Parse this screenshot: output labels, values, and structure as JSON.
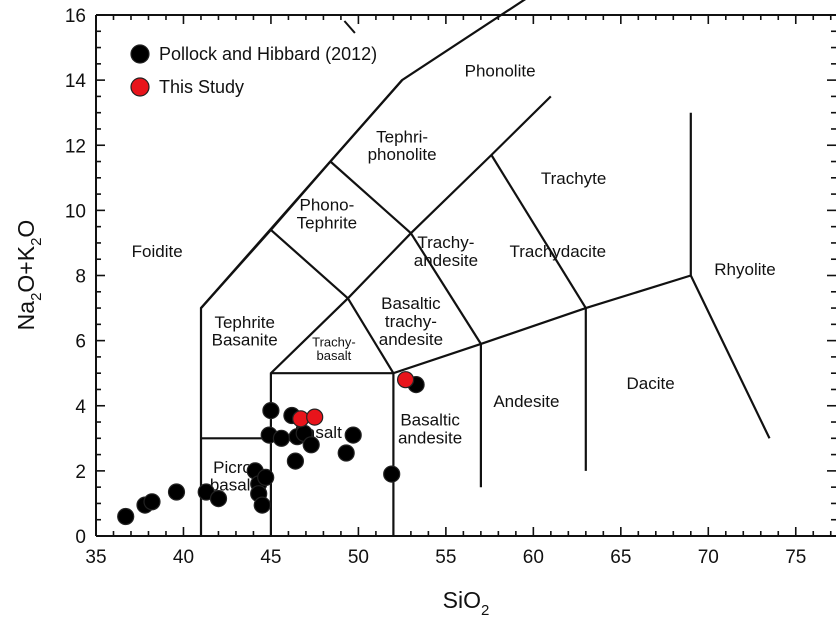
{
  "chart_data": {
    "type": "scatter",
    "xlabel": {
      "main": "SiO",
      "sub": "2"
    },
    "ylabel": {
      "p1": "Na",
      "s1": "2",
      "p2": "O+K",
      "s2": "2",
      "p3": "O"
    },
    "xlim": [
      35,
      77.3
    ],
    "ylim": [
      0,
      16
    ],
    "x_ticks": [
      "35",
      "40",
      "45",
      "50",
      "55",
      "60",
      "65",
      "70",
      "75"
    ],
    "y_ticks": [
      "0",
      "2",
      "4",
      "6",
      "8",
      "10",
      "12",
      "14",
      "16"
    ],
    "grid": false,
    "legend_position": "top-left",
    "series": [
      {
        "name": "Pollock and Hibbard (2012)",
        "color": "#000000",
        "points": [
          [
            36.7,
            0.6
          ],
          [
            37.8,
            0.95
          ],
          [
            38.2,
            1.05
          ],
          [
            39.6,
            1.35
          ],
          [
            41.3,
            1.35
          ],
          [
            42.0,
            1.15
          ],
          [
            44.1,
            2.0
          ],
          [
            44.3,
            1.6
          ],
          [
            44.3,
            1.3
          ],
          [
            44.5,
            0.95
          ],
          [
            44.7,
            1.8
          ],
          [
            45.0,
            3.85
          ],
          [
            44.9,
            3.1
          ],
          [
            45.6,
            3.0
          ],
          [
            46.2,
            3.7
          ],
          [
            46.4,
            2.3
          ],
          [
            46.5,
            3.05
          ],
          [
            46.9,
            3.15
          ],
          [
            47.3,
            2.8
          ],
          [
            49.3,
            2.55
          ],
          [
            49.7,
            3.1
          ],
          [
            51.9,
            1.9
          ],
          [
            53.3,
            4.65
          ]
        ]
      },
      {
        "name": "This Study",
        "color": "#e8141b",
        "points": [
          [
            46.7,
            3.6
          ],
          [
            47.5,
            3.65
          ],
          [
            52.7,
            4.8
          ]
        ]
      }
    ],
    "tas_field_labels": [
      {
        "lines": [
          "Foidite"
        ],
        "x": 38.5,
        "y": 8.75,
        "size": "normal"
      },
      {
        "lines": [
          "Phonolite"
        ],
        "x": 58.1,
        "y": 14.3,
        "size": "normal"
      },
      {
        "lines": [
          "Tephri-",
          "phonolite"
        ],
        "x": 52.5,
        "y": 12.0,
        "size": "normal"
      },
      {
        "lines": [
          "Phono-",
          "Tephrite"
        ],
        "x": 48.2,
        "y": 9.9,
        "size": "normal"
      },
      {
        "lines": [
          "Trachyte"
        ],
        "x": 62.3,
        "y": 11.0,
        "size": "normal"
      },
      {
        "lines": [
          "Trachy-",
          "andesite"
        ],
        "x": 55.0,
        "y": 8.75,
        "size": "normal"
      },
      {
        "lines": [
          "Trachydacite"
        ],
        "x": 61.4,
        "y": 8.75,
        "size": "normal"
      },
      {
        "lines": [
          "Rhyolite"
        ],
        "x": 72.1,
        "y": 8.2,
        "size": "normal"
      },
      {
        "lines": [
          "Basaltic",
          "trachy-",
          "andesite"
        ],
        "x": 53.0,
        "y": 6.6,
        "size": "normal"
      },
      {
        "lines": [
          "Tephrite",
          "Basanite"
        ],
        "x": 43.5,
        "y": 6.3,
        "size": "normal"
      },
      {
        "lines": [
          "Trachy-",
          "basalt"
        ],
        "x": 48.6,
        "y": 5.75,
        "size": "small"
      },
      {
        "lines": [
          "Basalt"
        ],
        "x": 47.7,
        "y": 3.2,
        "size": "normal"
      },
      {
        "lines": [
          "Basaltic",
          "andesite"
        ],
        "x": 54.1,
        "y": 3.3,
        "size": "normal"
      },
      {
        "lines": [
          "Andesite"
        ],
        "x": 59.6,
        "y": 4.15,
        "size": "normal"
      },
      {
        "lines": [
          "Dacite"
        ],
        "x": 66.7,
        "y": 4.7,
        "size": "normal"
      },
      {
        "lines": [
          "Picro",
          "basalt"
        ],
        "x": 42.8,
        "y": 1.85,
        "size": "normal"
      }
    ]
  }
}
